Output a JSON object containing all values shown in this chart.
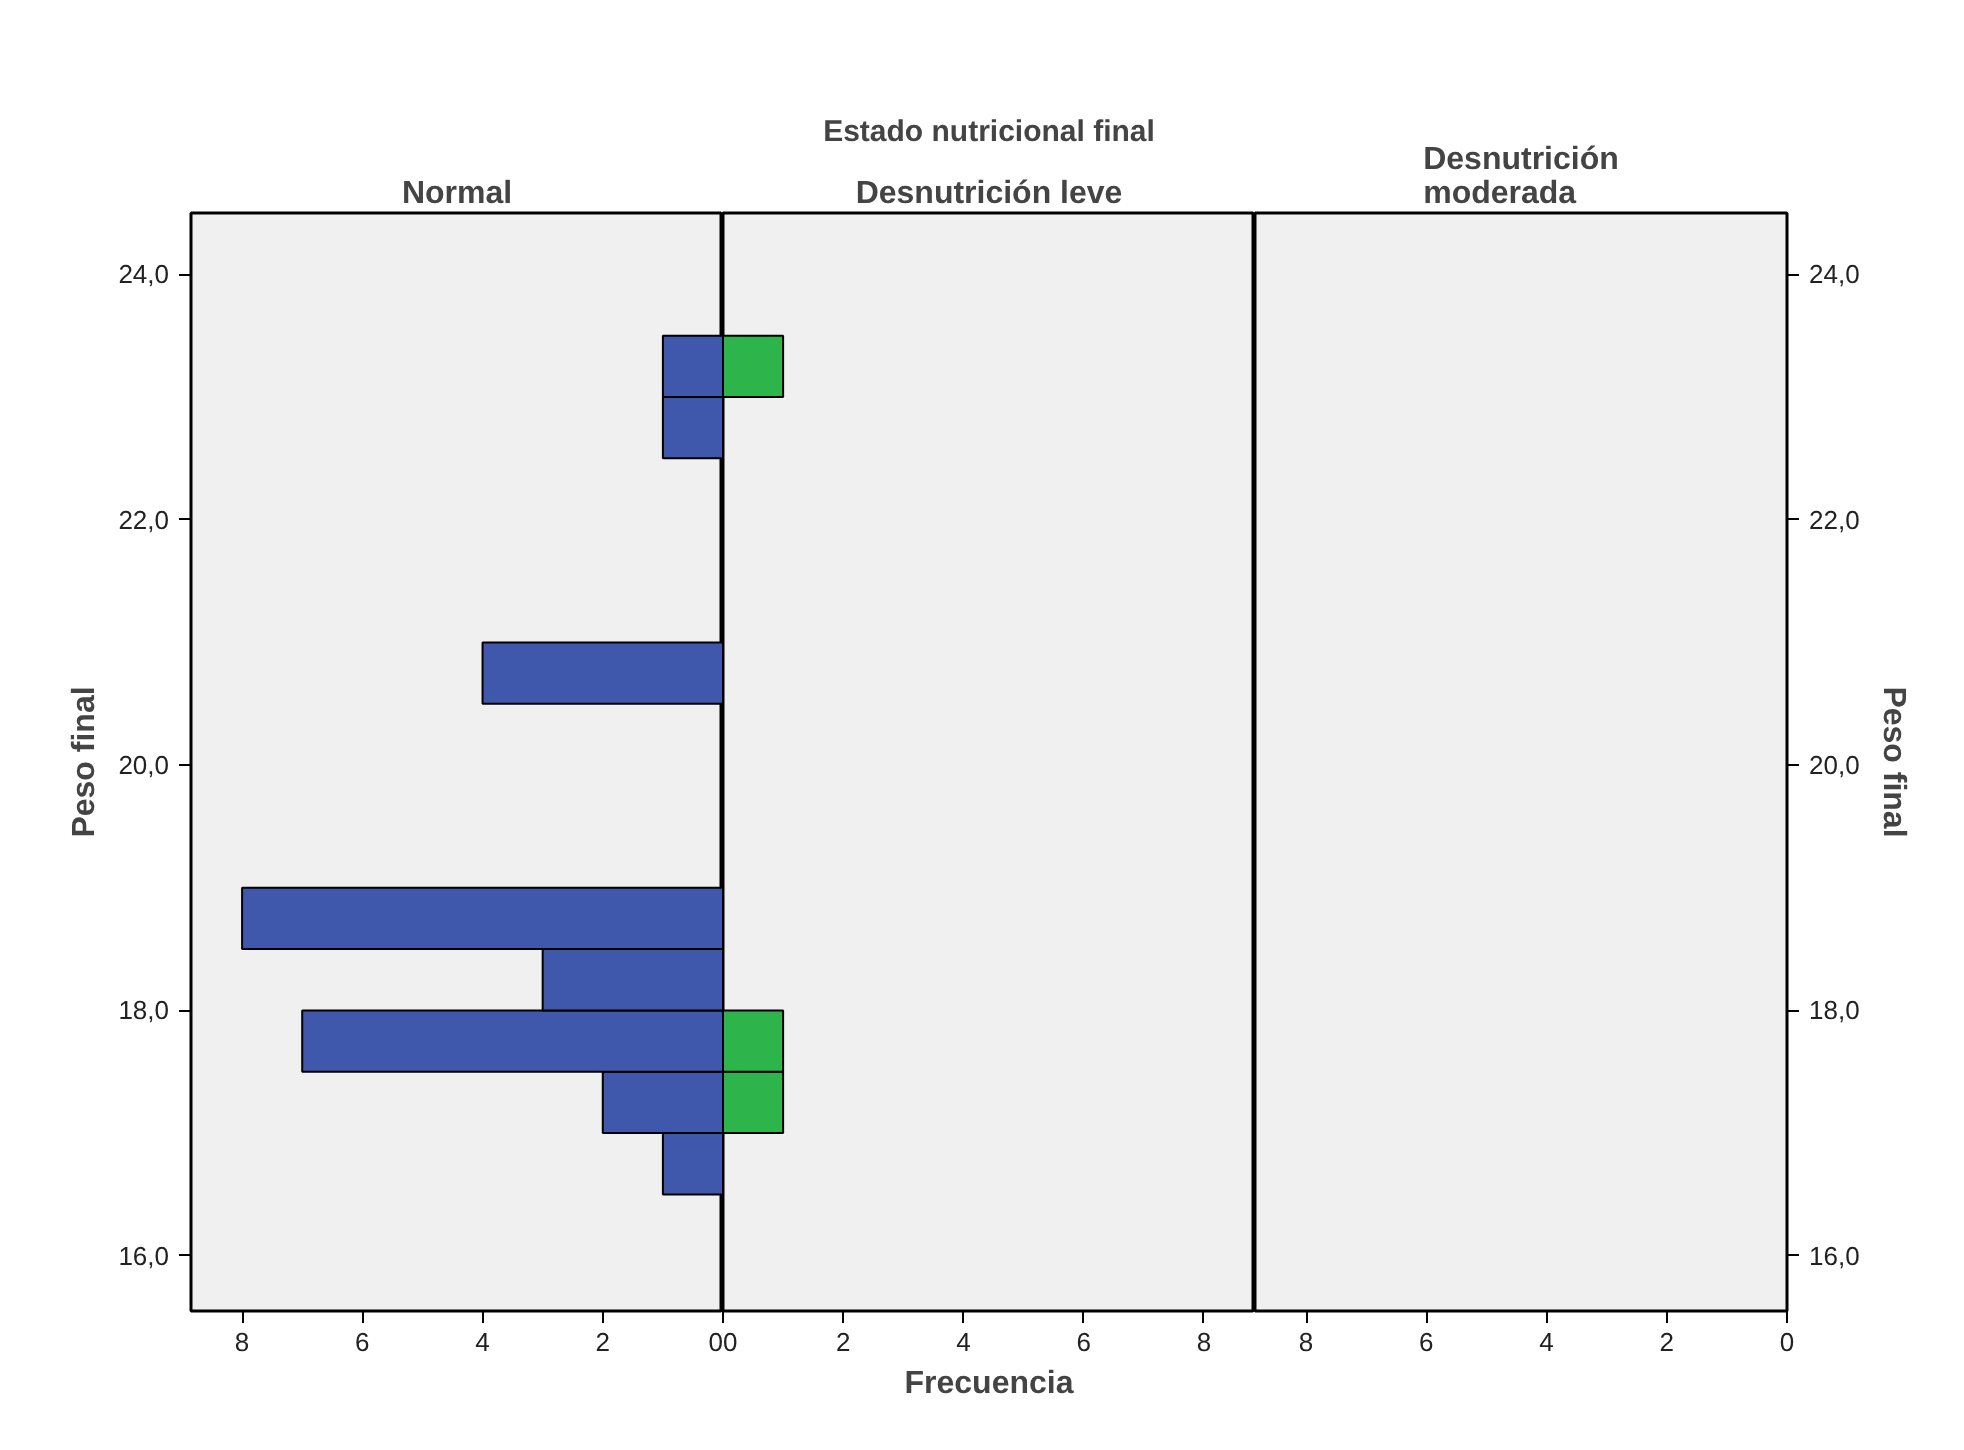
{
  "chart_data": [
    {
      "type": "histogram",
      "orientation": "horizontal",
      "subtitle": "Normal",
      "ylabel": "Peso final",
      "color": "#3f58ab",
      "bins": [
        16.5,
        17,
        17.5,
        18,
        18.5,
        19,
        19.5,
        20,
        20.5,
        21,
        21.5,
        22,
        22.5,
        23,
        23.5
      ],
      "values": [
        1,
        2,
        7,
        3,
        8,
        0,
        0,
        0,
        4,
        0,
        0,
        0,
        1,
        1
      ],
      "xlim": [
        8.85,
        0
      ],
      "xticks": [
        0,
        2,
        4,
        6,
        8
      ],
      "ylim": [
        15.55,
        24.5
      ],
      "yticks": [
        {
          "value": 16,
          "label": "16,0"
        },
        {
          "value": 18,
          "label": "18,0"
        },
        {
          "value": 20,
          "label": "20,0"
        },
        {
          "value": 22,
          "label": "22,0"
        },
        {
          "value": 24,
          "label": "24,0"
        }
      ],
      "grid": false
    },
    {
      "type": "histogram",
      "orientation": "horizontal",
      "title": "Estado nutricional final",
      "subtitle": "Desnutrición leve",
      "xlabel": "Frecuencia",
      "color": "#2db44a",
      "bins": [
        16.5,
        17,
        17.5,
        18,
        18.5,
        19,
        19.5,
        20,
        20.5,
        21,
        21.5,
        22,
        22.5,
        23,
        23.5
      ],
      "values": [
        0,
        1,
        1,
        0,
        0,
        0,
        0,
        0,
        0,
        0,
        0,
        0,
        0,
        1
      ],
      "xlim": [
        0,
        8.85
      ],
      "xticks": [
        0,
        2,
        4,
        6,
        8
      ],
      "ylim": [
        15.55,
        24.5
      ],
      "tick_labels": "x",
      "grid": false
    },
    {
      "type": "histogram",
      "orientation": "horizontal",
      "subtitle": "Desnutrición moderada",
      "ylabel": "Peso final",
      "xlim": [
        8.85,
        0
      ],
      "xticks": [
        0,
        2,
        4,
        6,
        8
      ],
      "ylim": [
        15.55,
        24.5
      ],
      "yticks": [
        {
          "value": 16,
          "label": "16,0"
        },
        {
          "value": 18,
          "label": "18,0"
        },
        {
          "value": 20,
          "label": "20,0"
        },
        {
          "value": 22,
          "label": "22,0"
        },
        {
          "value": 24,
          "label": "24,0"
        }
      ],
      "grid": false
    }
  ]
}
